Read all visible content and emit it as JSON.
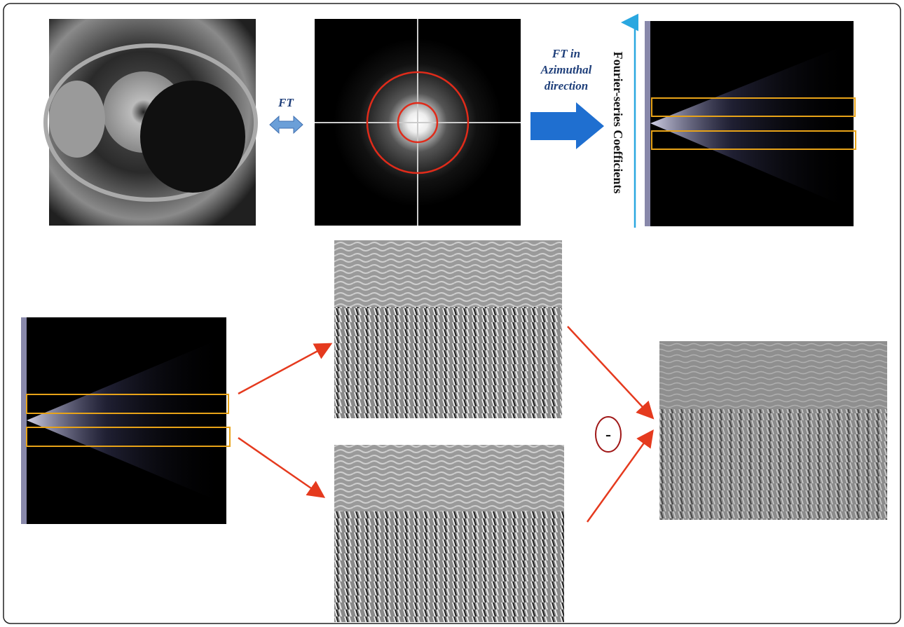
{
  "labels": {
    "ft": "FT",
    "ft_azimuthal": [
      "FT in",
      "Azimuthal",
      "direction"
    ],
    "axis": "Fourier-series Coefficients",
    "minus": "-"
  }
}
